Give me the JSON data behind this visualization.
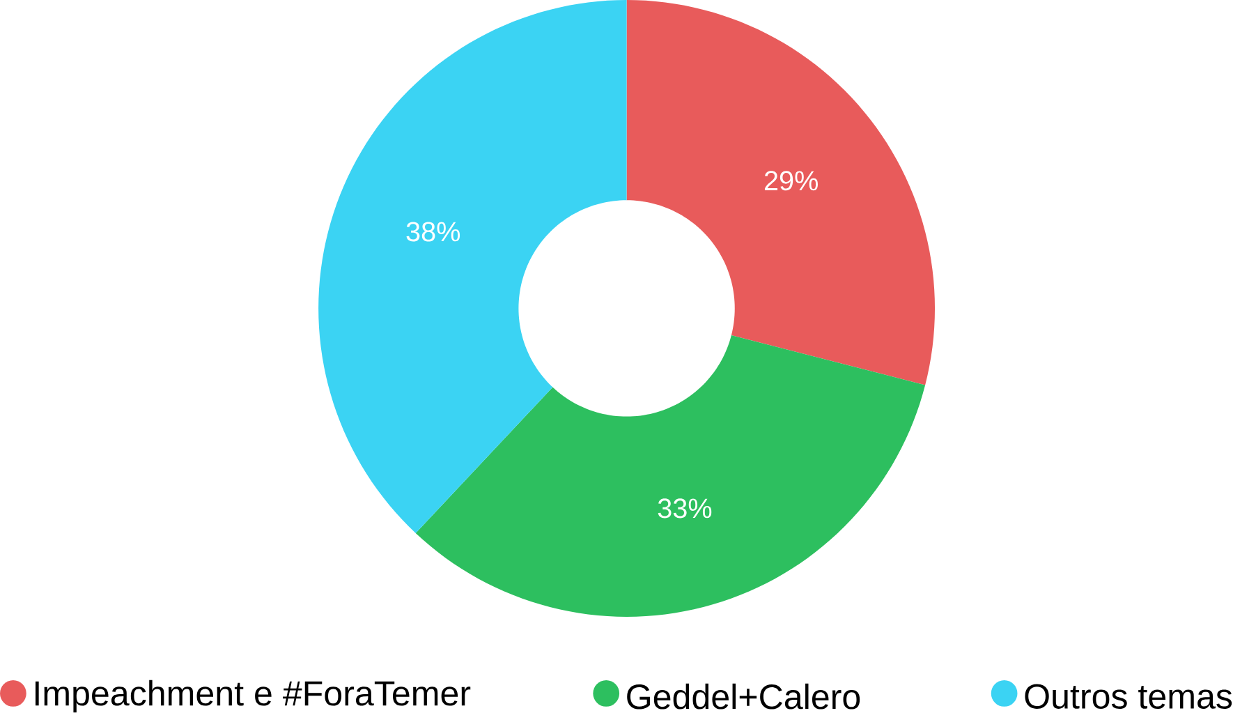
{
  "chart_data": {
    "type": "donut",
    "categories": [
      "Impeachment e #ForaTemer",
      "Geddel+Calero",
      "Outros temas"
    ],
    "values": [
      29,
      33,
      38
    ],
    "colors": [
      "#e85b5b",
      "#2dbf5f",
      "#3bd3f3"
    ],
    "value_labels": [
      "29%",
      "33%",
      "38%"
    ],
    "legend": "bottom"
  }
}
